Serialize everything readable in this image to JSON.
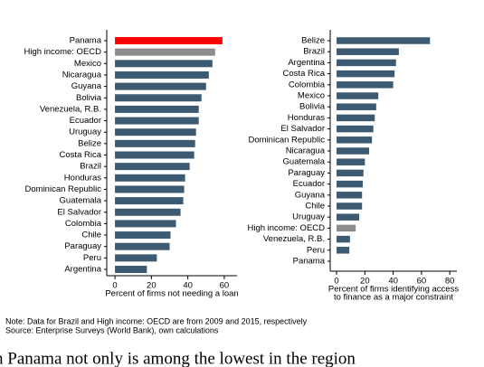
{
  "chart_data": [
    {
      "type": "hbar",
      "categories": [
        "Panama",
        "High income: OECD",
        "Mexico",
        "Nicaragua",
        "Guyana",
        "Bolivia",
        "Venezuela, R.B.",
        "Ecuador",
        "Uruguay",
        "Belize",
        "Costa Rica",
        "Brazil",
        "Honduras",
        "Dominican Republic",
        "Guatemala",
        "El Salvador",
        "Colombia",
        "Chile",
        "Paraguay",
        "Peru",
        "Argentina"
      ],
      "values": [
        59,
        55,
        53.5,
        51.5,
        50,
        47.5,
        46,
        46,
        44.5,
        44,
        43.5,
        41,
        38.5,
        38,
        37.5,
        36,
        33.5,
        30.5,
        30,
        23,
        17.5
      ],
      "colors": [
        "#ff0000",
        "#8c8c8c",
        "#3d5a73",
        "#3d5a73",
        "#3d5a73",
        "#3d5a73",
        "#3d5a73",
        "#3d5a73",
        "#3d5a73",
        "#3d5a73",
        "#3d5a73",
        "#3d5a73",
        "#3d5a73",
        "#3d5a73",
        "#3d5a73",
        "#3d5a73",
        "#3d5a73",
        "#3d5a73",
        "#3d5a73",
        "#3d5a73",
        "#3d5a73"
      ],
      "xlim": [
        -4.5,
        67
      ],
      "xticks": [
        0,
        20,
        40,
        60
      ],
      "xlabel": [
        "Percent of firms not needing a loan"
      ]
    },
    {
      "type": "hbar",
      "categories": [
        "Belize",
        "Brazil",
        "Argentina",
        "Costa Rica",
        "Colombia",
        "Mexico",
        "Bolivia",
        "Honduras",
        "El Salvador",
        "Dominican Republic",
        "Nicaragua",
        "Guatemala",
        "Paraguay",
        "Ecuador",
        "Guyana",
        "Chile",
        "Uruguay",
        "High income: OECD",
        "Venezuela, R.B.",
        "Peru",
        "Panama"
      ],
      "values": [
        66,
        44,
        42,
        41,
        40,
        29.5,
        28,
        27,
        26,
        25,
        23,
        20,
        19,
        18.5,
        18,
        18,
        16,
        13.5,
        9.5,
        9,
        0
      ],
      "colors": [
        "#3d5a73",
        "#3d5a73",
        "#3d5a73",
        "#3d5a73",
        "#3d5a73",
        "#3d5a73",
        "#3d5a73",
        "#3d5a73",
        "#3d5a73",
        "#3d5a73",
        "#3d5a73",
        "#3d5a73",
        "#3d5a73",
        "#3d5a73",
        "#3d5a73",
        "#3d5a73",
        "#3d5a73",
        "#8c8c8c",
        "#3d5a73",
        "#3d5a73",
        "#ff0000"
      ],
      "xlim": [
        -4.5,
        85
      ],
      "xticks": [
        0,
        20,
        40,
        60,
        80
      ],
      "xlabel": [
        "Percent of firms identifying access",
        "to finance as a major constraint"
      ]
    }
  ],
  "note": [
    "Note: Data for Brazil and High income: OECD are from 2009 and 2015, respectively",
    "Source: Enterprise Surveys (World Bank), own calculations"
  ],
  "body_text": "n Panama not only is among the lowest in the region"
}
